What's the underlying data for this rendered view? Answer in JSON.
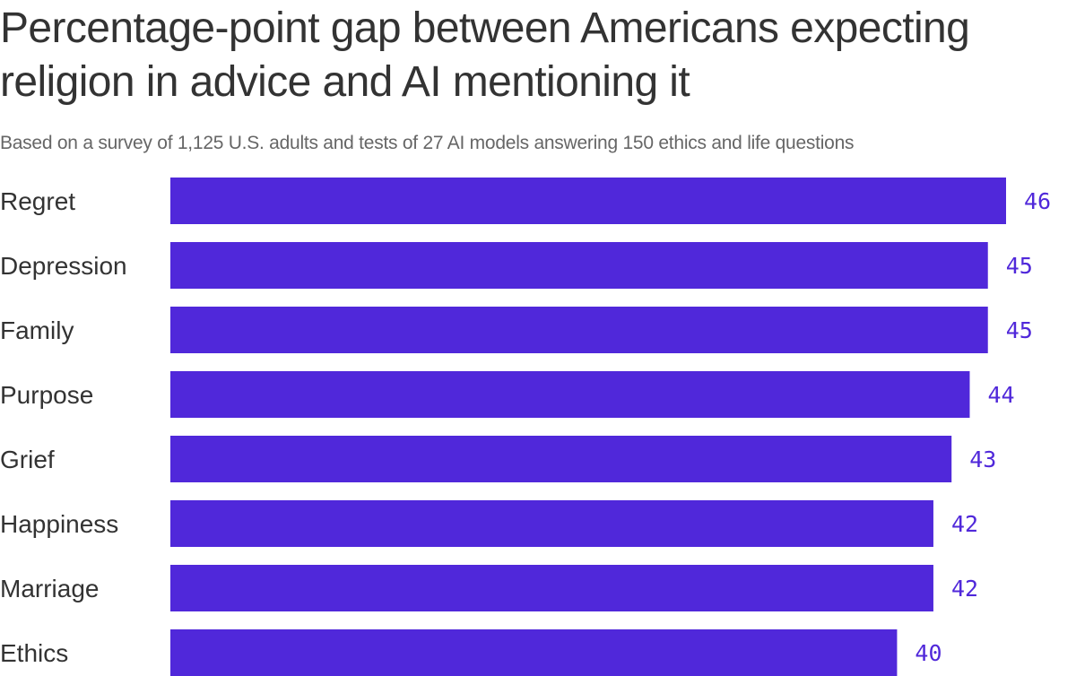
{
  "title": "Percentage-point gap between Americans expecting religion in advice and AI mentioning it",
  "subtitle": "Based on a survey of 1,125 U.S. adults and tests of 27 AI models answering 150 ethics and life questions",
  "colors": {
    "bar": "#5028DA",
    "value_label": "#5028DA",
    "category_label": "#333333",
    "title": "#333333",
    "subtitle": "#666666"
  },
  "chart_data": {
    "type": "bar",
    "orientation": "horizontal",
    "categories": [
      "Regret",
      "Depression",
      "Family",
      "Purpose",
      "Grief",
      "Happiness",
      "Marriage",
      "Ethics"
    ],
    "values": [
      46,
      45,
      45,
      44,
      43,
      42,
      42,
      40
    ],
    "title": "Percentage-point gap between Americans expecting religion in advice and AI mentioning it",
    "subtitle": "Based on a survey of 1,125 U.S. adults and tests of 27 AI models answering 150 ethics and life questions",
    "xlim": [
      0,
      46
    ],
    "grid": false,
    "legend": "none",
    "data_labels": true
  }
}
